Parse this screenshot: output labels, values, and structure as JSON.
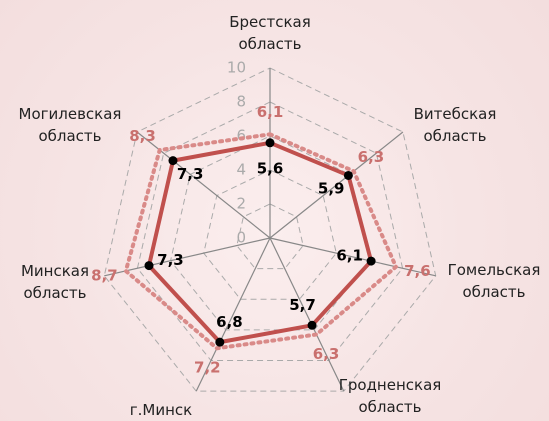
{
  "chart_data": {
    "type": "radar",
    "categories": [
      "Брестская область",
      "Витебская область",
      "Гомельская область",
      "Гродненская область",
      "г.Минск",
      "Минская область",
      "Могилевская область"
    ],
    "series": [
      {
        "color": "#c0504d",
        "label_color": "#000000",
        "line_style": "solid",
        "markers": true,
        "values": [
          5.6,
          5.9,
          6.1,
          5.7,
          6.8,
          7.3,
          7.3
        ],
        "value_labels": [
          "5,6",
          "5,9",
          "6,1",
          "5,7",
          "6,8",
          "7,3",
          "7,3"
        ]
      },
      {
        "color": "#d98a88",
        "label_color": "#c9706e",
        "line_style": "dotted",
        "markers": false,
        "values": [
          6.1,
          6.3,
          7.6,
          6.3,
          7.2,
          8.7,
          8.3
        ],
        "value_labels": [
          "6,1",
          "6,3",
          "7,6",
          "6,3",
          "7,2",
          "8,7",
          "8,3"
        ]
      }
    ],
    "rlim": [
      0,
      10
    ],
    "rticks": [
      0,
      2,
      4,
      6,
      8,
      10
    ],
    "grid": true
  }
}
